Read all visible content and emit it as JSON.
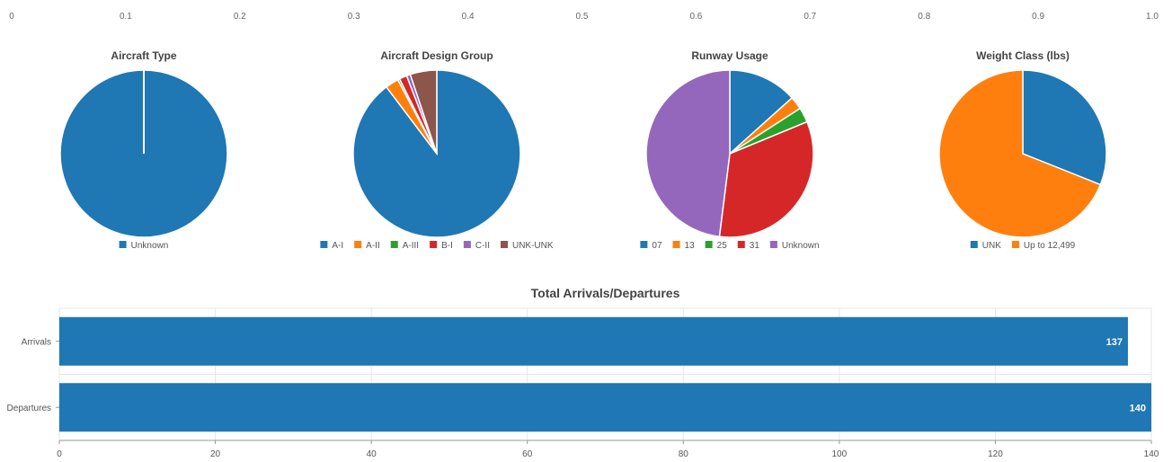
{
  "colors": {
    "blue": "#1f77b4",
    "orange": "#ff7f0e",
    "green": "#2ca02c",
    "red": "#d62728",
    "purple": "#9467bd",
    "brown": "#8c564b",
    "title_text": "#444444",
    "axis_text": "#555555",
    "grid": "#e6e6e6"
  },
  "top_axis": {
    "ticks": [
      "0",
      "0.1",
      "0.2",
      "0.3",
      "0.4",
      "0.5",
      "0.6",
      "0.7",
      "0.8",
      "0.9",
      "1.0"
    ]
  },
  "chart_data": [
    {
      "type": "pie",
      "title": "Aircraft Type",
      "slices": [
        {
          "label": "Unknown",
          "value": 277,
          "color": "#1f77b4"
        }
      ],
      "legend": [
        "Unknown"
      ],
      "legend_placement": "bottom"
    },
    {
      "type": "pie",
      "title": "Aircraft Design Group",
      "slices": [
        {
          "label": "A-I",
          "value": 244,
          "color": "#1f77b4"
        },
        {
          "label": "A-II",
          "value": 7,
          "color": "#ff7f0e"
        },
        {
          "label": "A-III",
          "value": 1,
          "color": "#2ca02c"
        },
        {
          "label": "B-I",
          "value": 4,
          "color": "#d62728"
        },
        {
          "label": "C-II",
          "value": 2,
          "color": "#9467bd"
        },
        {
          "label": "UNK-UNK",
          "value": 14,
          "color": "#8c564b"
        }
      ],
      "legend": [
        "A-I",
        "A-II",
        "A-III",
        "B-I",
        "C-II",
        "UNK-UNK"
      ],
      "legend_placement": "bottom"
    },
    {
      "type": "pie",
      "title": "Runway Usage",
      "slices": [
        {
          "label": "07",
          "value": 37,
          "color": "#1f77b4"
        },
        {
          "label": "13",
          "value": 7,
          "color": "#ff7f0e"
        },
        {
          "label": "25",
          "value": 8,
          "color": "#2ca02c"
        },
        {
          "label": "31",
          "value": 92,
          "color": "#d62728"
        },
        {
          "label": "Unknown",
          "value": 133,
          "color": "#9467bd"
        }
      ],
      "legend": [
        "07",
        "13",
        "25",
        "31",
        "Unknown"
      ],
      "legend_placement": "bottom"
    },
    {
      "type": "pie",
      "title": "Weight Class (lbs)",
      "slices": [
        {
          "label": "UNK",
          "value": 86,
          "color": "#1f77b4"
        },
        {
          "label": "Up to 12,499",
          "value": 191,
          "color": "#ff7f0e"
        }
      ],
      "legend": [
        "UNK",
        "Up to 12,499"
      ],
      "legend_placement": "bottom"
    },
    {
      "type": "bar",
      "orientation": "horizontal",
      "title": "Total Arrivals/Departures",
      "categories": [
        "Arrivals",
        "Departures"
      ],
      "values": [
        137,
        140
      ],
      "data_labels": [
        "137",
        "140"
      ],
      "xlim": [
        0,
        140
      ],
      "xticks": [
        "0",
        "20",
        "40",
        "60",
        "80",
        "100",
        "120",
        "140"
      ],
      "grid": true,
      "color": "#1f77b4"
    }
  ]
}
